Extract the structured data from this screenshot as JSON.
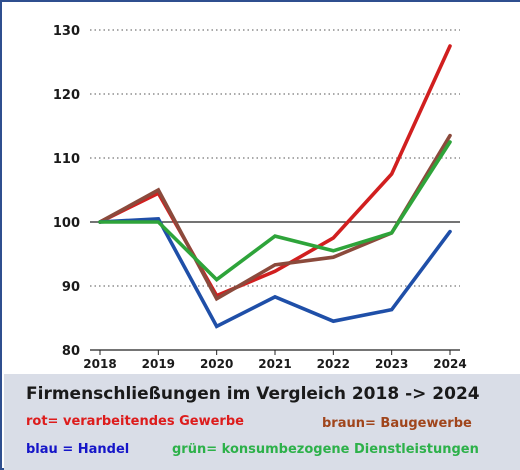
{
  "chart_data": {
    "type": "line",
    "title": "Firmenschließungen im Vergleich 2018 -> 2024",
    "x": [
      "2018",
      "2019",
      "2020",
      "2021",
      "2022",
      "2023",
      "2024"
    ],
    "ylim": [
      80,
      130
    ],
    "yticks": [
      "80",
      "90",
      "100",
      "110",
      "120",
      "130"
    ],
    "grid": "horizontal dotted, solid reference line at 100",
    "series": [
      {
        "key": "rot",
        "color": "#d11f1f",
        "values": [
          100,
          104.5,
          88.5,
          92.3,
          97.5,
          107.5,
          127.5
        ]
      },
      {
        "key": "braun",
        "color": "#8b4a3c",
        "values": [
          100,
          105,
          88,
          93.3,
          94.5,
          98.3,
          113.5
        ]
      },
      {
        "key": "blau",
        "color": "#1f4fa8",
        "values": [
          100,
          100.5,
          83.7,
          88.3,
          84.5,
          86.3,
          98.5
        ]
      },
      {
        "key": "gruen",
        "color": "#2ea43a",
        "values": [
          100,
          100,
          91,
          97.8,
          95.5,
          98.3,
          112.5
        ]
      }
    ],
    "legend": {
      "red": "rot= verarbeitendes Gewerbe",
      "brown": "braun= Baugewerbe",
      "blue": "blau = Handel",
      "green": "grün= konsumbezogene Dienstleistungen"
    }
  }
}
